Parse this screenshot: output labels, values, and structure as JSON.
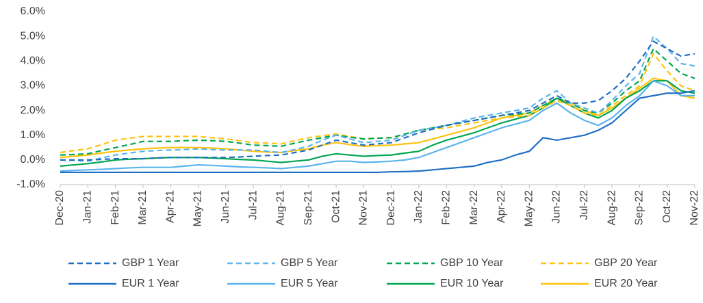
{
  "chart_data": {
    "type": "line",
    "categories": [
      "Dec-20",
      null,
      "Jan-21",
      null,
      "Feb-21",
      null,
      "Mar-21",
      null,
      "Apr-21",
      null,
      "May-21",
      null,
      "Jun-21",
      null,
      "Jul-21",
      null,
      "Aug-21",
      null,
      "Sep-21",
      null,
      "Oct-21",
      null,
      "Nov-21",
      null,
      "Dec-21",
      null,
      "Jan-22",
      null,
      "Feb-22",
      null,
      "Mar-22",
      null,
      "Apr-22",
      null,
      "May-22",
      null,
      "Jun-22",
      null,
      "Jul-22",
      null,
      "Aug-22",
      null,
      "Sep-22",
      null,
      "Oct-22",
      null,
      "Nov-22"
    ],
    "ylim": [
      -1,
      6
    ],
    "yticks": [
      {
        "value": -1,
        "label": "-1.0%"
      },
      {
        "value": 0,
        "label": "0.0%"
      },
      {
        "value": 1,
        "label": "1.0%"
      },
      {
        "value": 2,
        "label": "2.0%"
      },
      {
        "value": 3,
        "label": "3.0%"
      },
      {
        "value": 4,
        "label": "4.0%"
      },
      {
        "value": 5,
        "label": "5.0%"
      },
      {
        "value": 6,
        "label": "6.0%"
      }
    ],
    "grid": false,
    "legend": "bottom",
    "series": [
      {
        "name": "GBP 1 Year",
        "color": "#1f6fc5",
        "style": "dashed",
        "values": [
          0.0,
          0.0,
          0.0,
          0.02,
          0.05,
          0.05,
          0.05,
          0.08,
          0.1,
          0.1,
          0.1,
          0.1,
          0.1,
          0.12,
          0.15,
          0.18,
          0.2,
          0.3,
          0.4,
          0.6,
          0.8,
          0.7,
          0.6,
          0.65,
          0.7,
          0.9,
          1.1,
          1.25,
          1.4,
          1.5,
          1.6,
          1.7,
          1.8,
          1.9,
          2.0,
          2.3,
          2.6,
          2.3,
          2.3,
          2.4,
          2.8,
          3.3,
          4.0,
          4.8,
          4.5,
          4.2,
          4.3
        ]
      },
      {
        "name": "GBP 5 Year",
        "color": "#5ab4ee",
        "style": "dashed",
        "values": [
          0.0,
          -0.02,
          -0.05,
          0.08,
          0.2,
          0.28,
          0.35,
          0.38,
          0.4,
          0.42,
          0.45,
          0.42,
          0.4,
          0.4,
          0.4,
          0.35,
          0.3,
          0.42,
          0.55,
          0.8,
          1.0,
          0.85,
          0.7,
          0.75,
          0.8,
          1.0,
          1.2,
          1.3,
          1.4,
          1.55,
          1.7,
          1.8,
          1.9,
          2.0,
          2.1,
          2.5,
          2.8,
          2.3,
          2.1,
          1.9,
          2.4,
          3.0,
          3.5,
          5.0,
          4.5,
          3.9,
          3.8
        ]
      },
      {
        "name": "GBP 10 Year",
        "color": "#00a651",
        "style": "dashed",
        "values": [
          0.2,
          0.22,
          0.25,
          0.38,
          0.5,
          0.62,
          0.75,
          0.75,
          0.75,
          0.78,
          0.8,
          0.78,
          0.75,
          0.68,
          0.6,
          0.58,
          0.55,
          0.68,
          0.8,
          0.9,
          1.0,
          0.92,
          0.85,
          0.88,
          0.9,
          1.05,
          1.2,
          1.3,
          1.4,
          1.5,
          1.6,
          1.7,
          1.8,
          1.85,
          1.9,
          2.2,
          2.5,
          2.3,
          2.0,
          1.9,
          2.3,
          2.8,
          3.2,
          4.5,
          4.0,
          3.5,
          3.3
        ]
      },
      {
        "name": "GBP 20 Year",
        "color": "#ffc20e",
        "style": "dashed",
        "values": [
          0.3,
          0.38,
          0.45,
          0.62,
          0.8,
          0.88,
          0.95,
          0.95,
          0.95,
          0.95,
          0.95,
          0.9,
          0.85,
          0.78,
          0.7,
          0.68,
          0.65,
          0.78,
          0.9,
          0.98,
          1.05,
          0.95,
          0.85,
          0.88,
          0.9,
          1.05,
          1.2,
          1.25,
          1.3,
          1.4,
          1.5,
          1.6,
          1.7,
          1.75,
          1.8,
          2.1,
          2.4,
          2.2,
          1.9,
          1.8,
          2.2,
          2.6,
          3.0,
          4.3,
          3.6,
          3.0,
          2.8
        ]
      },
      {
        "name": "EUR 1 Year",
        "color": "#1f6fc5",
        "style": "solid",
        "values": [
          -0.5,
          -0.5,
          -0.5,
          -0.5,
          -0.5,
          -0.5,
          -0.5,
          -0.5,
          -0.5,
          -0.5,
          -0.5,
          -0.5,
          -0.5,
          -0.5,
          -0.5,
          -0.5,
          -0.5,
          -0.5,
          -0.5,
          -0.5,
          -0.5,
          -0.5,
          -0.5,
          -0.5,
          -0.48,
          -0.47,
          -0.45,
          -0.4,
          -0.35,
          -0.3,
          -0.25,
          -0.1,
          0.0,
          0.2,
          0.35,
          0.9,
          0.8,
          0.9,
          1.0,
          1.2,
          1.5,
          2.0,
          2.5,
          2.6,
          2.7,
          2.7,
          2.8
        ]
      },
      {
        "name": "EUR 5 Year",
        "color": "#5ab4ee",
        "style": "solid",
        "values": [
          -0.45,
          -0.42,
          -0.4,
          -0.38,
          -0.35,
          -0.32,
          -0.3,
          -0.3,
          -0.3,
          -0.25,
          -0.2,
          -0.22,
          -0.25,
          -0.28,
          -0.3,
          -0.32,
          -0.35,
          -0.3,
          -0.25,
          -0.15,
          -0.05,
          -0.05,
          -0.1,
          -0.08,
          -0.05,
          0.0,
          0.1,
          0.3,
          0.5,
          0.7,
          0.9,
          1.1,
          1.3,
          1.45,
          1.6,
          2.0,
          2.3,
          1.9,
          1.6,
          1.4,
          1.7,
          2.2,
          2.6,
          3.2,
          3.0,
          2.6,
          2.6
        ]
      },
      {
        "name": "EUR 10 Year",
        "color": "#00a651",
        "style": "solid",
        "values": [
          -0.25,
          -0.2,
          -0.15,
          -0.08,
          0.0,
          0.03,
          0.05,
          0.08,
          0.1,
          0.1,
          0.1,
          0.08,
          0.05,
          0.02,
          0.0,
          -0.05,
          -0.1,
          -0.05,
          0.0,
          0.15,
          0.25,
          0.2,
          0.15,
          0.18,
          0.2,
          0.28,
          0.35,
          0.6,
          0.8,
          0.95,
          1.1,
          1.3,
          1.5,
          1.65,
          1.8,
          2.1,
          2.5,
          2.2,
          1.9,
          1.7,
          2.0,
          2.5,
          2.8,
          3.2,
          3.2,
          2.8,
          2.7
        ]
      },
      {
        "name": "EUR 20 Year",
        "color": "#ffc20e",
        "style": "solid",
        "values": [
          0.1,
          0.15,
          0.2,
          0.28,
          0.35,
          0.4,
          0.45,
          0.48,
          0.5,
          0.5,
          0.5,
          0.48,
          0.45,
          0.4,
          0.35,
          0.32,
          0.3,
          0.38,
          0.45,
          0.6,
          0.7,
          0.62,
          0.55,
          0.58,
          0.6,
          0.65,
          0.7,
          0.85,
          1.0,
          1.15,
          1.3,
          1.5,
          1.7,
          1.8,
          1.9,
          2.2,
          2.5,
          2.3,
          2.0,
          1.8,
          2.1,
          2.5,
          2.9,
          3.3,
          3.2,
          2.6,
          2.5
        ]
      }
    ]
  }
}
